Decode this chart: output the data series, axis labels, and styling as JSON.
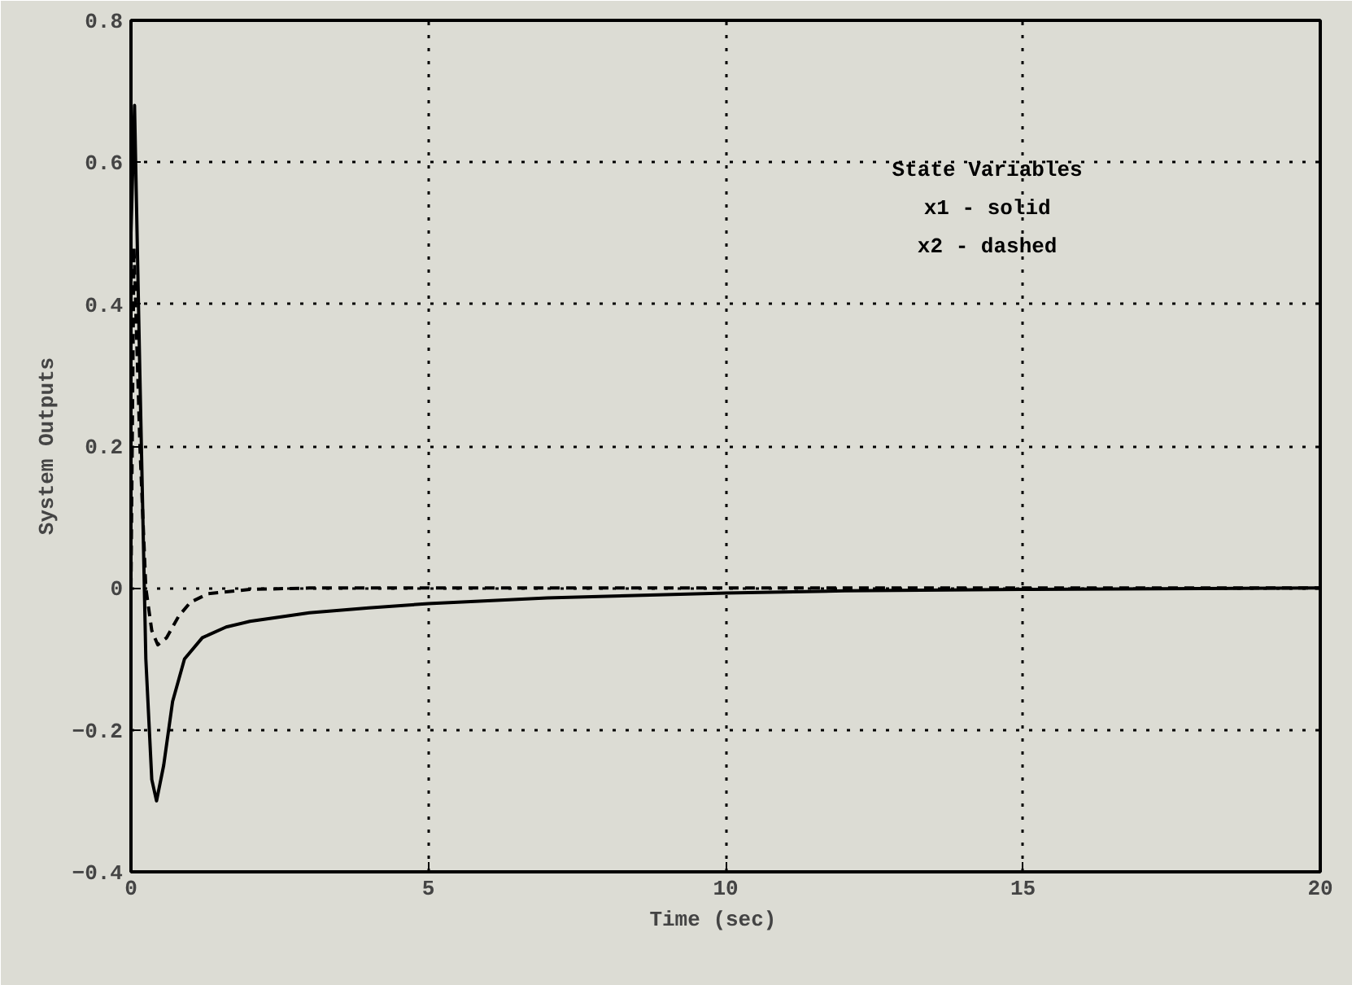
{
  "chart_data": {
    "type": "line",
    "xlabel": "Time   (sec)",
    "ylabel": "System Outputs",
    "xlim": [
      0,
      20
    ],
    "ylim": [
      -0.4,
      0.8
    ],
    "xticks": [
      0,
      5,
      10,
      15,
      20
    ],
    "yticks": [
      {
        "value": -0.4,
        "label": "−0.4"
      },
      {
        "value": -0.2,
        "label": "−0.2"
      },
      0,
      0.2,
      0.4,
      0.6,
      0.8
    ],
    "grid": true,
    "color": "#000000",
    "annotations": [
      "State Variables",
      "x1 - solid",
      "x2 - dashed"
    ],
    "series": [
      {
        "line_style": "solid",
        "x": [
          0,
          0.06,
          0.15,
          0.25,
          0.35,
          0.43,
          0.55,
          0.7,
          0.9,
          1.2,
          1.6,
          2,
          3,
          4,
          5,
          7,
          10,
          12,
          15,
          20
        ],
        "values": [
          0.5,
          0.68,
          0.3,
          -0.1,
          -0.27,
          -0.3,
          -0.25,
          -0.16,
          -0.1,
          -0.07,
          -0.055,
          -0.047,
          -0.035,
          -0.028,
          -0.022,
          -0.014,
          -0.007,
          -0.004,
          -0.002,
          0
        ]
      },
      {
        "line_style": "dashed",
        "x": [
          0,
          0.05,
          0.15,
          0.25,
          0.35,
          0.45,
          0.6,
          0.8,
          1.0,
          1.3,
          2,
          3,
          20
        ],
        "values": [
          0,
          0.48,
          0.2,
          0.0,
          -0.06,
          -0.08,
          -0.07,
          -0.04,
          -0.02,
          -0.008,
          -0.002,
          0,
          0
        ]
      }
    ]
  }
}
